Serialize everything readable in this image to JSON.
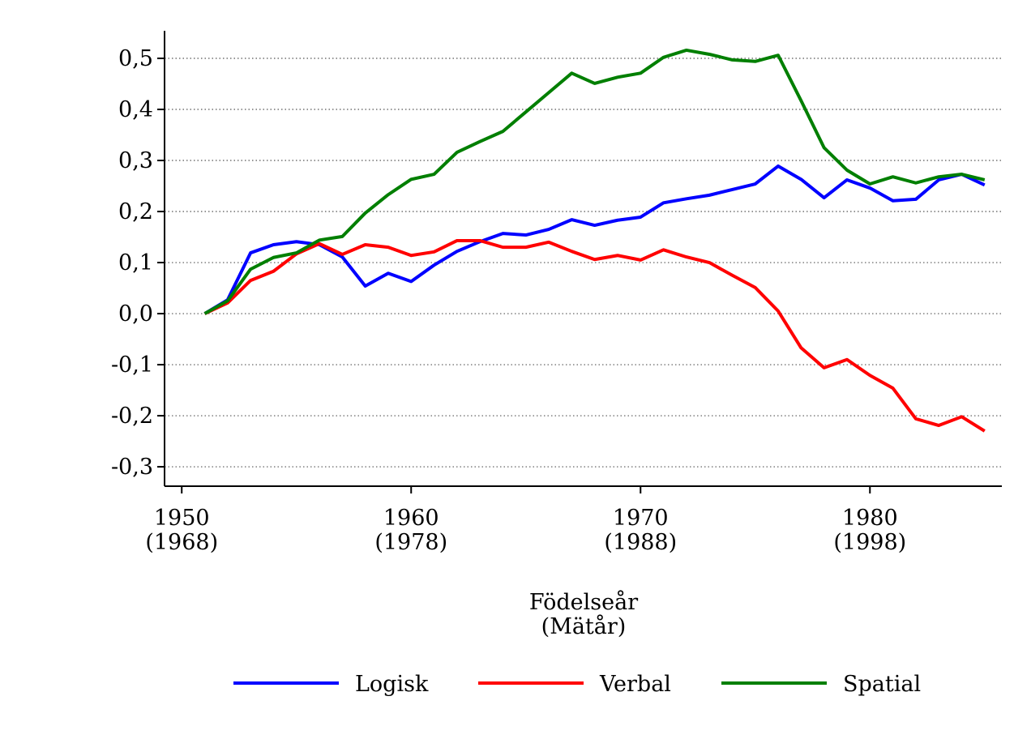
{
  "chart_data": {
    "type": "line",
    "xlabel": [
      "Födelseår",
      "(Mätår)"
    ],
    "x": [
      1951,
      1952,
      1953,
      1954,
      1955,
      1956,
      1957,
      1958,
      1959,
      1960,
      1961,
      1962,
      1963,
      1964,
      1965,
      1966,
      1967,
      1968,
      1969,
      1970,
      1971,
      1972,
      1973,
      1974,
      1975,
      1976,
      1977,
      1978,
      1979,
      1980,
      1981,
      1982,
      1983,
      1984,
      1985
    ],
    "series": [
      {
        "name": "Logisk",
        "color": "#0000ff",
        "values": [
          0,
          0.027,
          0.119,
          0.135,
          0.141,
          0.135,
          0.111,
          0.054,
          0.079,
          0.063,
          0.095,
          0.122,
          0.141,
          0.157,
          0.154,
          0.165,
          0.184,
          0.173,
          0.183,
          0.189,
          0.217,
          0.225,
          0.232,
          0.243,
          0.254,
          0.289,
          0.263,
          0.227,
          0.262,
          0.246,
          0.221,
          0.224,
          0.262,
          0.273,
          0.252
        ]
      },
      {
        "name": "Verbal",
        "color": "#ff0000",
        "values": [
          0,
          0.021,
          0.065,
          0.083,
          0.117,
          0.137,
          0.116,
          0.135,
          0.13,
          0.114,
          0.121,
          0.143,
          0.143,
          0.13,
          0.13,
          0.14,
          0.122,
          0.106,
          0.114,
          0.105,
          0.125,
          0.111,
          0.1,
          0.075,
          0.051,
          0.005,
          -0.067,
          -0.106,
          -0.09,
          -0.121,
          -0.146,
          -0.206,
          -0.219,
          -0.202,
          -0.23
        ]
      },
      {
        "name": "Spatial",
        "color": "#007f00",
        "values": [
          0,
          0.025,
          0.087,
          0.11,
          0.119,
          0.144,
          0.151,
          0.197,
          0.233,
          0.263,
          0.273,
          0.316,
          0.337,
          0.357,
          0.395,
          0.433,
          0.471,
          0.451,
          0.463,
          0.471,
          0.502,
          0.516,
          0.508,
          0.497,
          0.494,
          0.506,
          0.417,
          0.325,
          0.281,
          0.254,
          0.268,
          0.256,
          0.268,
          0.273,
          0.262
        ]
      }
    ],
    "xlim": [
      1949.25,
      1985.75
    ],
    "xticks": [
      {
        "value": 1950,
        "label": "1950\n(1968)"
      },
      {
        "value": 1960,
        "label": "1960\n(1978)"
      },
      {
        "value": 1970,
        "label": "1970\n(1988)"
      },
      {
        "value": 1980,
        "label": "1980\n(1998)"
      }
    ],
    "ylim": [
      -0.338,
      0.554
    ],
    "yticks": [
      {
        "value": -0.3,
        "label": "-0,3"
      },
      {
        "value": -0.2,
        "label": "-0,2"
      },
      {
        "value": -0.1,
        "label": "-0,1"
      },
      {
        "value": 0,
        "label": "0,0"
      },
      {
        "value": 0.1,
        "label": "0,1"
      },
      {
        "value": 0.2,
        "label": "0,2"
      },
      {
        "value": 0.3,
        "label": "0,3"
      },
      {
        "value": 0.4,
        "label": "0,4"
      },
      {
        "value": 0.5,
        "label": "0,5"
      }
    ],
    "grid": true,
    "legend": "bottom"
  }
}
